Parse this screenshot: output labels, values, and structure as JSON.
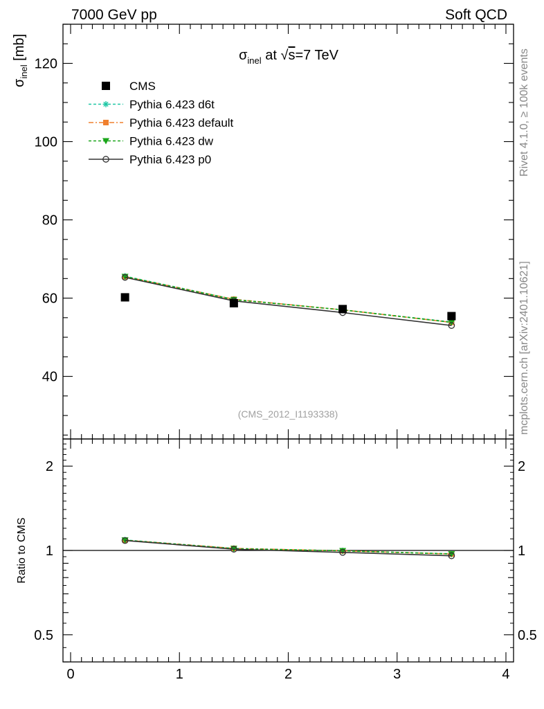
{
  "header": {
    "left_label": "7000 GeV pp",
    "right_label": "Soft QCD"
  },
  "side_text": {
    "rivet": "Rivet 4.1.0, ≥ 100k events",
    "mcplots": "mcplots.cern.ch [arXiv:2401.10621]"
  },
  "chart_data": {
    "type": "scatter",
    "title_parts": {
      "sigma": "σ",
      "sub": "inel",
      "middle": " at ",
      "root": "√",
      "s": "s",
      "rest": "=7 TeV"
    },
    "analysis_label": "(CMS_2012_I1193338)",
    "x": [
      0.5,
      1.5,
      2.5,
      3.5
    ],
    "xlim": [
      -0.07,
      4.07
    ],
    "x_ticks": [
      "0",
      "1",
      "2",
      "3",
      "4"
    ],
    "main": {
      "ylabel_sigma": "σ",
      "ylabel_sub": "inel",
      "ylabel_unit": " [mb]",
      "ylim": [
        24,
        130
      ],
      "y_ticks": [
        "40",
        "60",
        "80",
        "100",
        "120"
      ]
    },
    "ratio": {
      "ylabel": "Ratio to CMS",
      "ylim": [
        0.4,
        2.5
      ],
      "y_ticks": [
        "0.5",
        "1",
        "2"
      ],
      "reference": 1
    },
    "series": [
      {
        "name": "CMS",
        "color": "#000000",
        "marker": "square",
        "dash": "",
        "values": [
          60.2,
          58.7,
          57.2,
          55.4
        ],
        "ratio": [
          1,
          1,
          1,
          1
        ]
      },
      {
        "name": "Pythia 6.423 d6t",
        "color": "#1fc7a5",
        "marker": "star",
        "dash": "4,3",
        "values": [
          65.6,
          59.7,
          57.0,
          53.9
        ],
        "ratio": [
          1.09,
          1.017,
          0.997,
          0.973
        ]
      },
      {
        "name": "Pythia 6.423 default",
        "color": "#f0802f",
        "marker": "square-small",
        "dash": "7,3,2,3",
        "values": [
          65.5,
          59.7,
          57.0,
          53.8
        ],
        "ratio": [
          1.088,
          1.017,
          0.997,
          0.971
        ]
      },
      {
        "name": "Pythia 6.423 dw",
        "color": "#1aa61a",
        "marker": "triangle-down",
        "dash": "4,3",
        "values": [
          65.5,
          59.6,
          57.0,
          53.8
        ],
        "ratio": [
          1.088,
          1.015,
          0.997,
          0.971
        ]
      },
      {
        "name": "Pythia 6.423 p0",
        "color": "#333333",
        "marker": "circle-open",
        "dash": "",
        "values": [
          65.3,
          59.3,
          56.3,
          53.0
        ],
        "ratio": [
          1.085,
          1.01,
          0.984,
          0.957
        ]
      }
    ]
  }
}
